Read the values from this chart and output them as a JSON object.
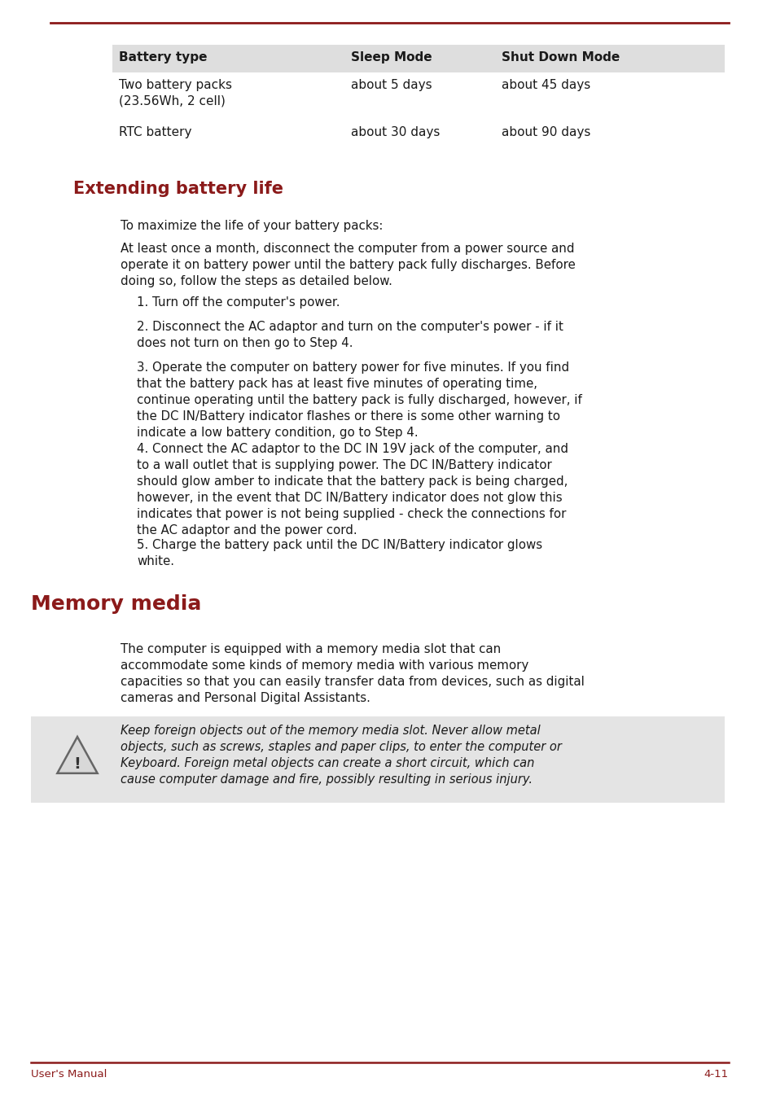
{
  "page_bg": "#ffffff",
  "accent_color": "#8B1A1A",
  "text_color": "#1a1a1a",
  "table_header_bg": "#dedede",
  "table_header_cols": [
    "Battery type",
    "Sleep Mode",
    "Shut Down Mode"
  ],
  "table_rows": [
    [
      "Two battery packs\n(23.56Wh, 2 cell)",
      "about 5 days",
      "about 45 days"
    ],
    [
      "RTC battery",
      "about 30 days",
      "about 90 days"
    ]
  ],
  "section1_title": "Extending battery life",
  "section2_title": "Memory media",
  "para0": "To maximize the life of your battery packs:",
  "para1": "At least once a month, disconnect the computer from a power source and\noperate it on battery power until the battery pack fully discharges. Before\ndoing so, follow the steps as detailed below.",
  "para2": "1. Turn off the computer's power.",
  "para3": "2. Disconnect the AC adaptor and turn on the computer's power - if it\ndoes not turn on then go to Step 4.",
  "para4a": "3. Operate the computer on battery power for five minutes. If you find\nthat the battery pack has at least five minutes of operating time,\ncontinue operating until the battery pack is fully discharged, however, if\nthe ",
  "para4b": "DC IN/Battery",
  "para4c": " indicator flashes or there is some other warning to\nindicate a low battery condition, go to Step 4.",
  "para5a": "4. Connect the AC adaptor to the DC IN 19V jack of the computer, and\nto a wall outlet that is supplying power. The ",
  "para5b": "DC IN/Battery",
  "para5c": " indicator\nshould glow amber to indicate that the battery pack is being charged,\nhowever, in the event that ",
  "para5d": "DC IN/Battery",
  "para5e": " indicator does not glow this\nindicates that power is not being supplied - check the connections for\nthe AC adaptor and the power cord.",
  "para6a": "5. Charge the battery pack until the ",
  "para6b": "DC IN/Battery",
  "para6c": " indicator glows\nwhite.",
  "section2_body": "The computer is equipped with a memory media slot that can\naccommodate some kinds of memory media with various memory\ncapacities so that you can easily transfer data from devices, such as digital\ncameras and Personal Digital Assistants.",
  "warning_text": "Keep foreign objects out of the memory media slot. Never allow metal\nobjects, such as screws, staples and paper clips, to enter the computer or\nKeyboard. Foreign metal objects can create a short circuit, which can\ncause computer damage and fire, possibly resulting in serious injury.",
  "footer_left": "User's Manual",
  "footer_right": "4-11"
}
